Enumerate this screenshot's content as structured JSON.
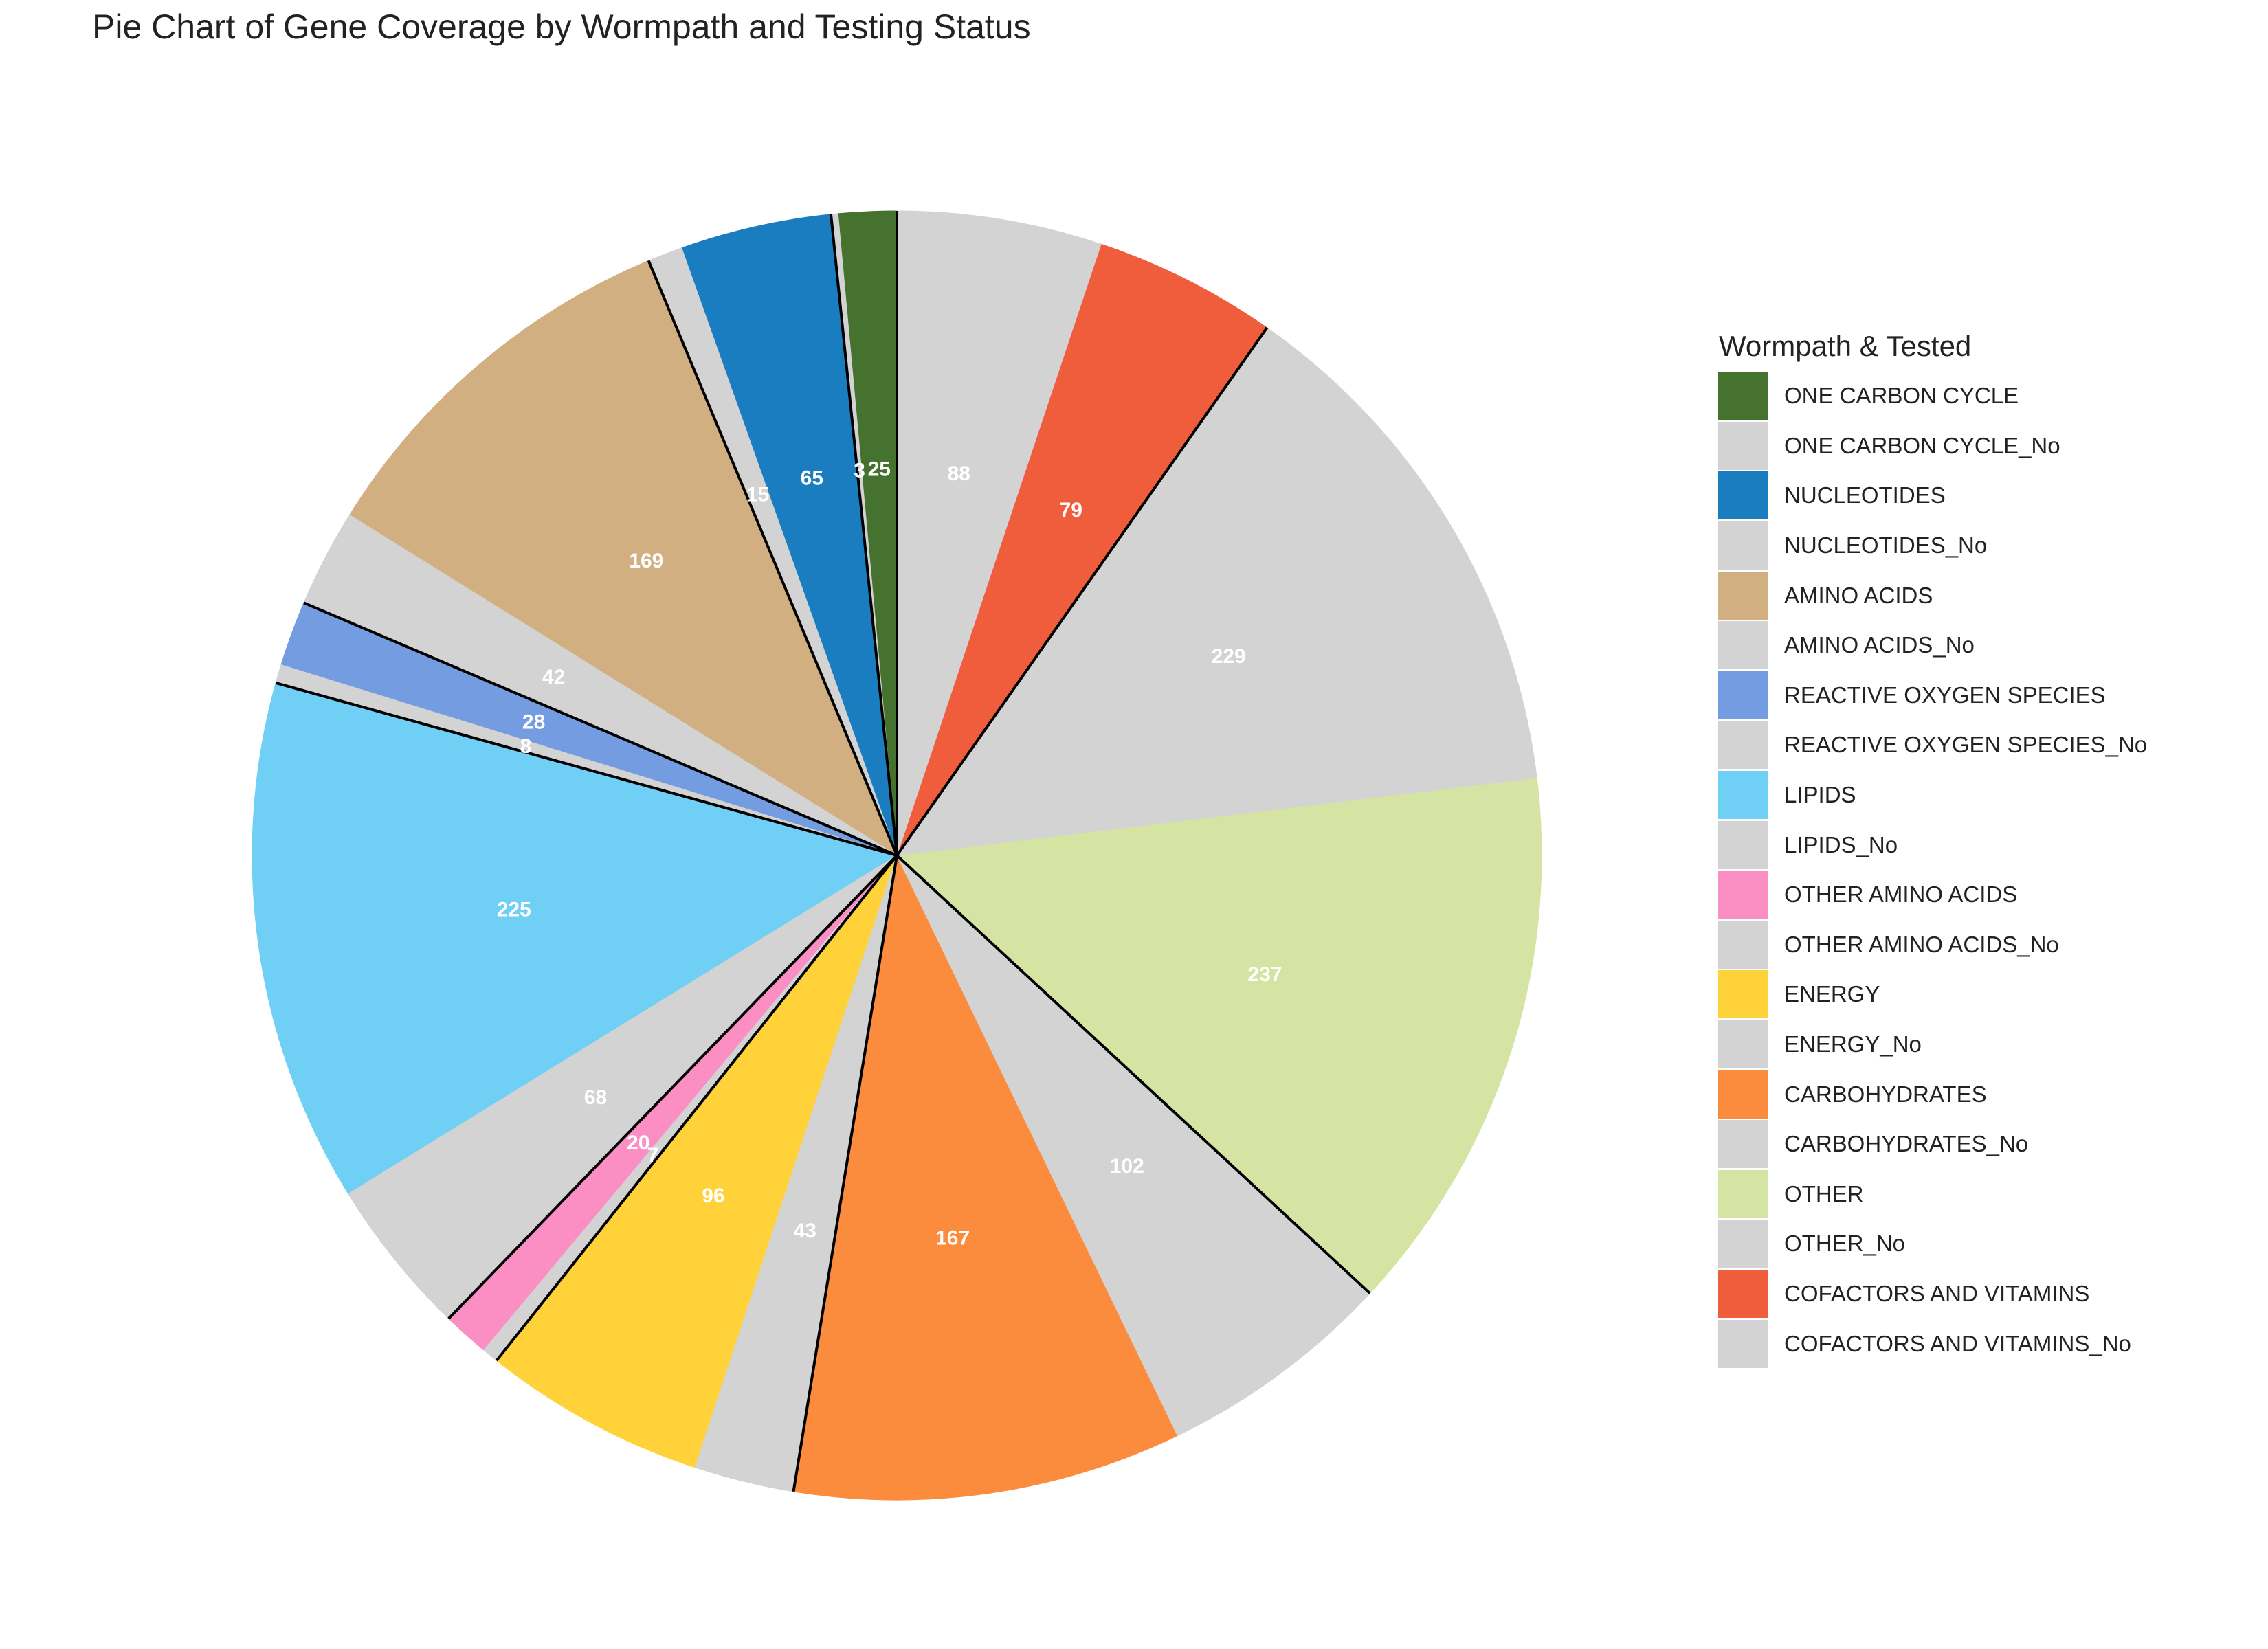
{
  "title": "Pie Chart of Gene Coverage by Wormpath and Testing Status",
  "chart_data": {
    "type": "pie",
    "title": "Pie Chart of Gene Coverage by Wormpath and Testing Status",
    "legend_title": "Wormpath & Tested",
    "legend_position": "right",
    "start_angle": "12 o'clock",
    "direction": "counterclockwise",
    "slices": [
      {
        "label": "ONE CARBON CYCLE",
        "value": 25,
        "color": "#45732f"
      },
      {
        "label": "ONE CARBON CYCLE_No",
        "value": 3,
        "color": "#d3d3d3"
      },
      {
        "label": "NUCLEOTIDES",
        "value": 65,
        "color": "#1a7dbf"
      },
      {
        "label": "NUCLEOTIDES_No",
        "value": 15,
        "color": "#d3d3d3"
      },
      {
        "label": "AMINO ACIDS",
        "value": 169,
        "color": "#d1af81"
      },
      {
        "label": "AMINO ACIDS_No",
        "value": 42,
        "color": "#d3d3d3"
      },
      {
        "label": "REACTIVE OXYGEN SPECIES",
        "value": 28,
        "color": "#739ce1"
      },
      {
        "label": "REACTIVE OXYGEN SPECIES_No",
        "value": 8,
        "color": "#d3d3d3"
      },
      {
        "label": "LIPIDS",
        "value": 225,
        "color": "#70cff5"
      },
      {
        "label": "LIPIDS_No",
        "value": 68,
        "color": "#d3d3d3"
      },
      {
        "label": "OTHER AMINO ACIDS",
        "value": 20,
        "color": "#fb8ec3"
      },
      {
        "label": "OTHER AMINO ACIDS_No",
        "value": 7,
        "color": "#d3d3d3"
      },
      {
        "label": "ENERGY",
        "value": 96,
        "color": "#ffd23a"
      },
      {
        "label": "ENERGY_No",
        "value": 43,
        "color": "#d3d3d3"
      },
      {
        "label": "CARBOHYDRATES",
        "value": 167,
        "color": "#fc8c3d"
      },
      {
        "label": "CARBOHYDRATES_No",
        "value": 102,
        "color": "#d3d3d3"
      },
      {
        "label": "OTHER",
        "value": 237,
        "color": "#d6e4a3"
      },
      {
        "label": "OTHER_No",
        "value": 229,
        "color": "#d3d3d3"
      },
      {
        "label": "COFACTORS AND VITAMINS",
        "value": 79,
        "color": "#f05d3d"
      },
      {
        "label": "COFACTORS AND VITAMINS_No",
        "value": 88,
        "color": "#d3d3d3"
      }
    ]
  }
}
